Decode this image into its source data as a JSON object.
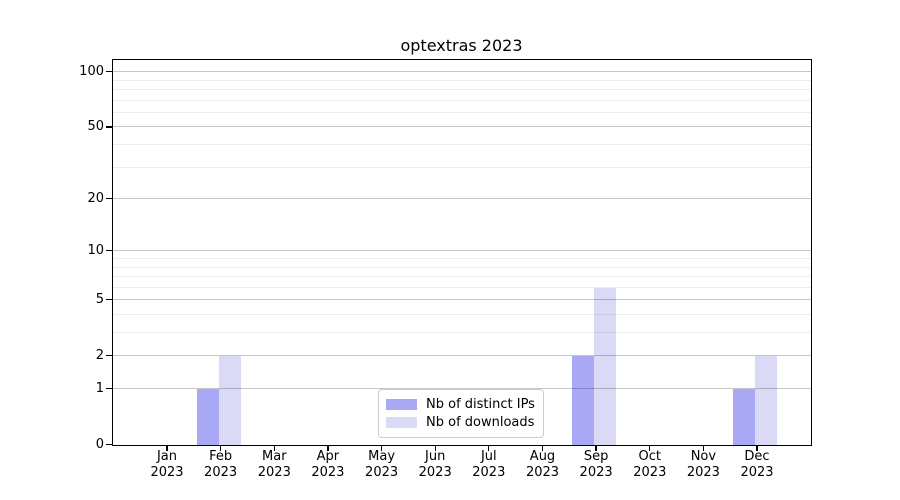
{
  "chart_data": {
    "type": "bar",
    "title": "optextras 2023",
    "categories": [
      "Jan 2023",
      "Feb 2023",
      "Mar 2023",
      "Apr 2023",
      "May 2023",
      "Jun 2023",
      "Jul 2023",
      "Aug 2023",
      "Sep 2023",
      "Oct 2023",
      "Nov 2023",
      "Dec 2023"
    ],
    "series": [
      {
        "name": "Nb of distinct IPs",
        "color": "#a8a8f5",
        "values": [
          0,
          1,
          0,
          0,
          0,
          0,
          0,
          0,
          2,
          0,
          0,
          1
        ]
      },
      {
        "name": "Nb of downloads",
        "color": "#dadaf7",
        "values": [
          0,
          2,
          0,
          0,
          0,
          0,
          0,
          0,
          6,
          0,
          0,
          2
        ]
      }
    ],
    "xlabel": "",
    "ylabel": "",
    "yscale": "log1p",
    "ylim": [
      0,
      115
    ],
    "y_major_ticks": [
      0,
      1,
      2,
      5,
      10,
      20,
      50,
      100
    ],
    "y_minor_ticks": [
      3,
      4,
      6,
      7,
      8,
      9,
      30,
      40,
      60,
      70,
      80,
      90
    ],
    "grid": true,
    "legend_position": "lower center"
  }
}
